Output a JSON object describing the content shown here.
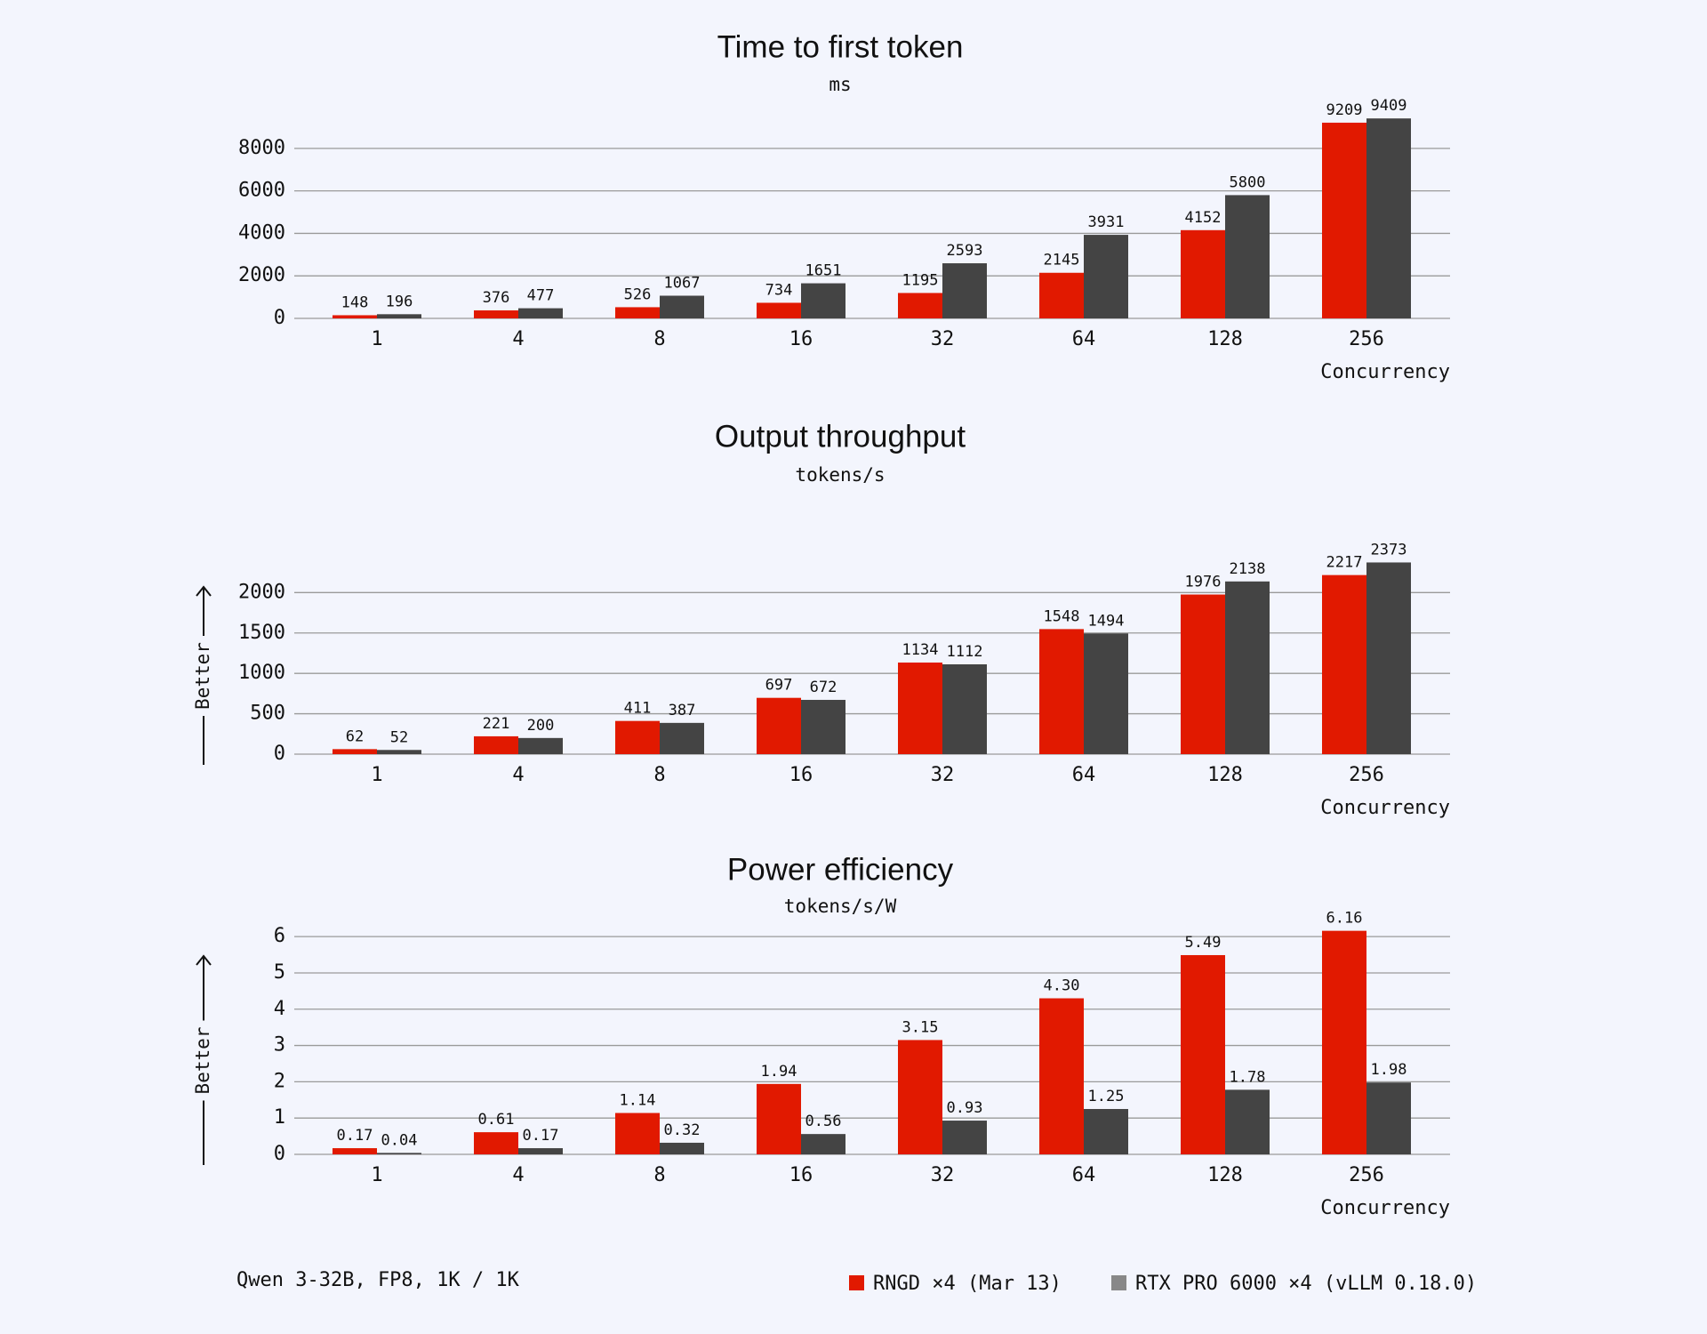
{
  "charts": [
    {
      "type": "bar",
      "title": "Time to first token",
      "subtitle": "ms",
      "x_label": "Concurrency",
      "categories": [
        "1",
        "4",
        "8",
        "16",
        "32",
        "64",
        "128",
        "256"
      ],
      "series": [
        {
          "name": "RNGD ×4 (Mar 13)",
          "color": "#e11900",
          "values": [
            148,
            376,
            526,
            734,
            1195,
            2145,
            4152,
            9209
          ]
        },
        {
          "name": "RTX PRO 6000 ×4 (vLLM 0.18.0)",
          "color": "#444444",
          "values": [
            196,
            477,
            1067,
            1651,
            2593,
            3931,
            5800,
            9409
          ]
        }
      ],
      "ylim": [
        0,
        9500
      ],
      "yticks": [
        0,
        2000,
        4000,
        6000,
        8000
      ],
      "grid": true
    },
    {
      "type": "bar",
      "title": "Output throughput",
      "subtitle": "tokens/s",
      "x_label": "Concurrency",
      "annotation": "Better",
      "categories": [
        "1",
        "4",
        "8",
        "16",
        "32",
        "64",
        "128",
        "256"
      ],
      "series": [
        {
          "name": "RNGD ×4 (Mar 13)",
          "color": "#e11900",
          "values": [
            62,
            221,
            411,
            697,
            1134,
            1548,
            1976,
            2217
          ]
        },
        {
          "name": "RTX PRO 6000 ×4 (vLLM 0.18.0)",
          "color": "#444444",
          "values": [
            52,
            200,
            387,
            672,
            1112,
            1494,
            2138,
            2373
          ]
        }
      ],
      "ylim": [
        0,
        2400
      ],
      "yticks": [
        0,
        500,
        1000,
        1500,
        2000
      ],
      "grid": true
    },
    {
      "type": "bar",
      "title": "Power efficiency",
      "subtitle": "tokens/s/W",
      "x_label": "Concurrency",
      "annotation": "Better",
      "categories": [
        "1",
        "4",
        "8",
        "16",
        "32",
        "64",
        "128",
        "256"
      ],
      "series": [
        {
          "name": "RNGD ×4 (Mar 13)",
          "color": "#e11900",
          "values": [
            0.17,
            0.61,
            1.14,
            1.94,
            3.15,
            4.3,
            5.49,
            6.16
          ],
          "value_labels": [
            "0.17",
            "0.61",
            "1.14",
            "1.94",
            "3.15",
            "4.30",
            "5.49",
            "6.16"
          ]
        },
        {
          "name": "RTX PRO 6000 ×4 (vLLM 0.18.0)",
          "color": "#444444",
          "values": [
            0.04,
            0.17,
            0.32,
            0.56,
            0.93,
            1.25,
            1.78,
            1.98
          ],
          "value_labels": [
            "0.04",
            "0.17",
            "0.32",
            "0.56",
            "0.93",
            "1.25",
            "1.78",
            "1.98"
          ]
        }
      ],
      "ylim": [
        0,
        6.2
      ],
      "yticks": [
        0,
        1,
        2,
        3,
        4,
        5,
        6
      ],
      "grid": true
    }
  ],
  "footnote": "Qwen 3-32B, FP8, 1K / 1K"
}
